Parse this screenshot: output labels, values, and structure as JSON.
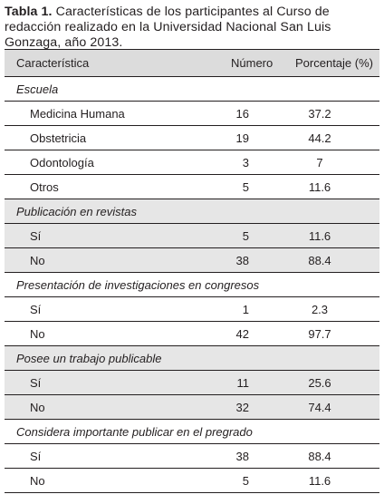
{
  "caption": {
    "label": "Tabla 1.",
    "text": " Características de los participantes al Curso de redacción realizado en la Universidad Nacional San Luis Gonzaga, año 2013."
  },
  "table": {
    "headers": {
      "characteristic": "Característica",
      "number": "Número",
      "percent": "Porcentaje (%)"
    },
    "groups": [
      {
        "title": "Escuela",
        "rows": [
          {
            "label": "Medicina Humana",
            "number": "16",
            "percent": "37.2"
          },
          {
            "label": "Obstetricia",
            "number": "19",
            "percent": "44.2"
          },
          {
            "label": "Odontología",
            "number": "3",
            "percent": "7"
          },
          {
            "label": "Otros",
            "number": "5",
            "percent": "11.6"
          }
        ]
      },
      {
        "title": "Publicación en revistas",
        "rows": [
          {
            "label": "Sí",
            "number": "5",
            "percent": "11.6"
          },
          {
            "label": "No",
            "number": "38",
            "percent": "88.4"
          }
        ]
      },
      {
        "title": "Presentación de investigaciones en congresos",
        "rows": [
          {
            "label": "Sí",
            "number": "1",
            "percent": "2.3"
          },
          {
            "label": "No",
            "number": "42",
            "percent": "97.7"
          }
        ]
      },
      {
        "title": "Posee un trabajo publicable",
        "rows": [
          {
            "label": "Sí",
            "number": "11",
            "percent": "25.6"
          },
          {
            "label": "No",
            "number": "32",
            "percent": "74.4"
          }
        ]
      },
      {
        "title": "Considera importante publicar en el pregrado",
        "rows": [
          {
            "label": "Sí",
            "number": "38",
            "percent": "88.4"
          },
          {
            "label": "No",
            "number": "5",
            "percent": "11.6"
          }
        ]
      }
    ]
  },
  "colors": {
    "text": "#231f20",
    "header_bg": "#dcdcdc",
    "shaded_bg": "#e6e6e6"
  }
}
